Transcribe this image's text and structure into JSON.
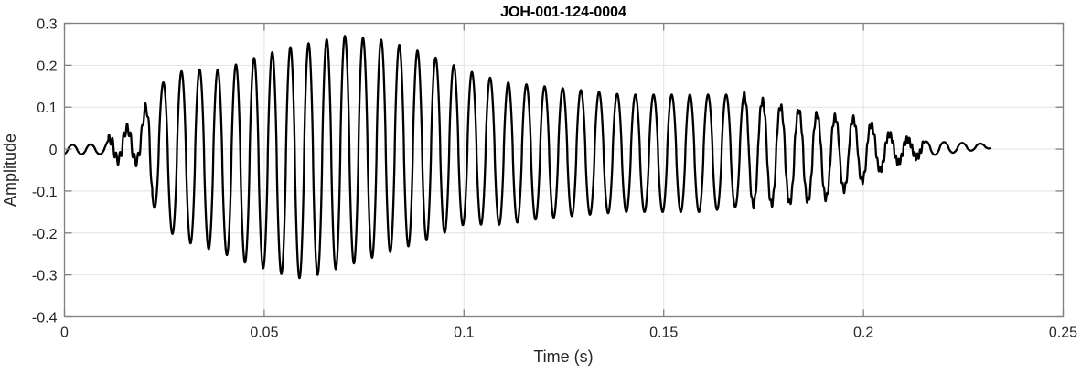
{
  "chart_data": {
    "type": "line",
    "title": "JOH-001-124-0004",
    "xlabel": "Time (s)",
    "ylabel": "Amplitude",
    "xlim": [
      0,
      0.25
    ],
    "ylim": [
      -0.4,
      0.3
    ],
    "xticks": [
      0,
      0.05,
      0.1,
      0.15,
      0.2,
      0.25
    ],
    "xtick_labels": [
      "0",
      "0.05",
      "0.1",
      "0.15",
      "0.2",
      "0.25"
    ],
    "yticks": [
      -0.4,
      -0.3,
      -0.2,
      -0.1,
      0,
      0.1,
      0.2,
      0.3
    ],
    "ytick_labels": [
      "-0.4",
      "-0.3",
      "-0.2",
      "-0.1",
      "0",
      "0.1",
      "0.2",
      "0.3"
    ],
    "grid": true,
    "line_color": "#000000",
    "signal": {
      "description_of_values": "oscillating waveform; envelope keyframes [time s, upper peak, lower peak]",
      "frequency_hz": 220,
      "duration_s": 0.232,
      "envelope": [
        [
          0.0,
          0.01,
          -0.012
        ],
        [
          0.01,
          0.012,
          -0.012
        ],
        [
          0.013,
          0.04,
          -0.025
        ],
        [
          0.019,
          0.06,
          -0.03
        ],
        [
          0.022,
          0.15,
          -0.13
        ],
        [
          0.025,
          0.16,
          -0.19
        ],
        [
          0.03,
          0.19,
          -0.22
        ],
        [
          0.04,
          0.19,
          -0.25
        ],
        [
          0.045,
          0.21,
          -0.27
        ],
        [
          0.055,
          0.24,
          -0.3
        ],
        [
          0.06,
          0.25,
          -0.31
        ],
        [
          0.07,
          0.27,
          -0.28
        ],
        [
          0.08,
          0.26,
          -0.25
        ],
        [
          0.09,
          0.23,
          -0.22
        ],
        [
          0.1,
          0.19,
          -0.18
        ],
        [
          0.11,
          0.16,
          -0.18
        ],
        [
          0.12,
          0.15,
          -0.165
        ],
        [
          0.14,
          0.13,
          -0.15
        ],
        [
          0.16,
          0.13,
          -0.15
        ],
        [
          0.17,
          0.13,
          -0.135
        ],
        [
          0.18,
          0.1,
          -0.13
        ],
        [
          0.19,
          0.08,
          -0.12
        ],
        [
          0.2,
          0.07,
          -0.075
        ],
        [
          0.205,
          0.04,
          -0.045
        ],
        [
          0.212,
          0.02,
          -0.02
        ],
        [
          0.232,
          0.012,
          0.002
        ]
      ]
    }
  }
}
